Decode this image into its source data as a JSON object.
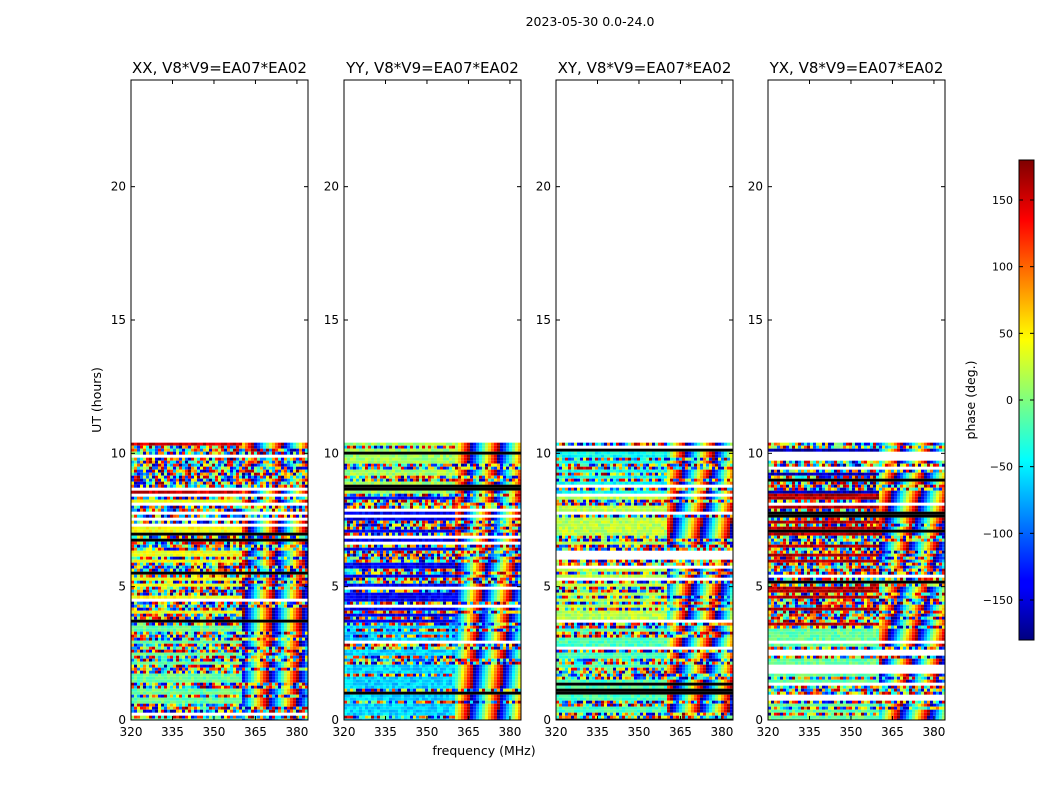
{
  "chart_data": {
    "type": "heatmap",
    "title": "2023-05-30 0.0-24.0",
    "xlabel": "frequency (MHz)",
    "ylabel": "UT (hours)",
    "x_ticks": [
      320,
      335,
      350,
      365,
      380
    ],
    "y_ticks": [
      0,
      5,
      10,
      15,
      20
    ],
    "xlim": [
      320,
      384
    ],
    "ylim": [
      0,
      24
    ],
    "data_extent_hours": [
      0,
      10.4
    ],
    "panels": [
      {
        "title": "XX, V8*V9=EA07*EA02",
        "dominant_phase": [
          -10,
          40,
          150
        ]
      },
      {
        "title": "YY, V8*V9=EA07*EA02",
        "dominant_phase": [
          -60,
          -140,
          10
        ]
      },
      {
        "title": "XY, V8*V9=EA07*EA02",
        "dominant_phase": [
          -20,
          20,
          -40
        ]
      },
      {
        "title": "YX, V8*V9=EA07*EA02",
        "dominant_phase": [
          -10,
          160,
          -160
        ]
      }
    ],
    "colorbar": {
      "label": "phase (deg.)",
      "range": [
        -180,
        180
      ],
      "ticks": [
        150,
        100,
        50,
        0,
        -50,
        -100,
        -150
      ],
      "tick_labels": [
        "150",
        "100",
        "50",
        "0",
        "−50",
        "−100",
        "−150"
      ],
      "colormap": "jet"
    }
  }
}
